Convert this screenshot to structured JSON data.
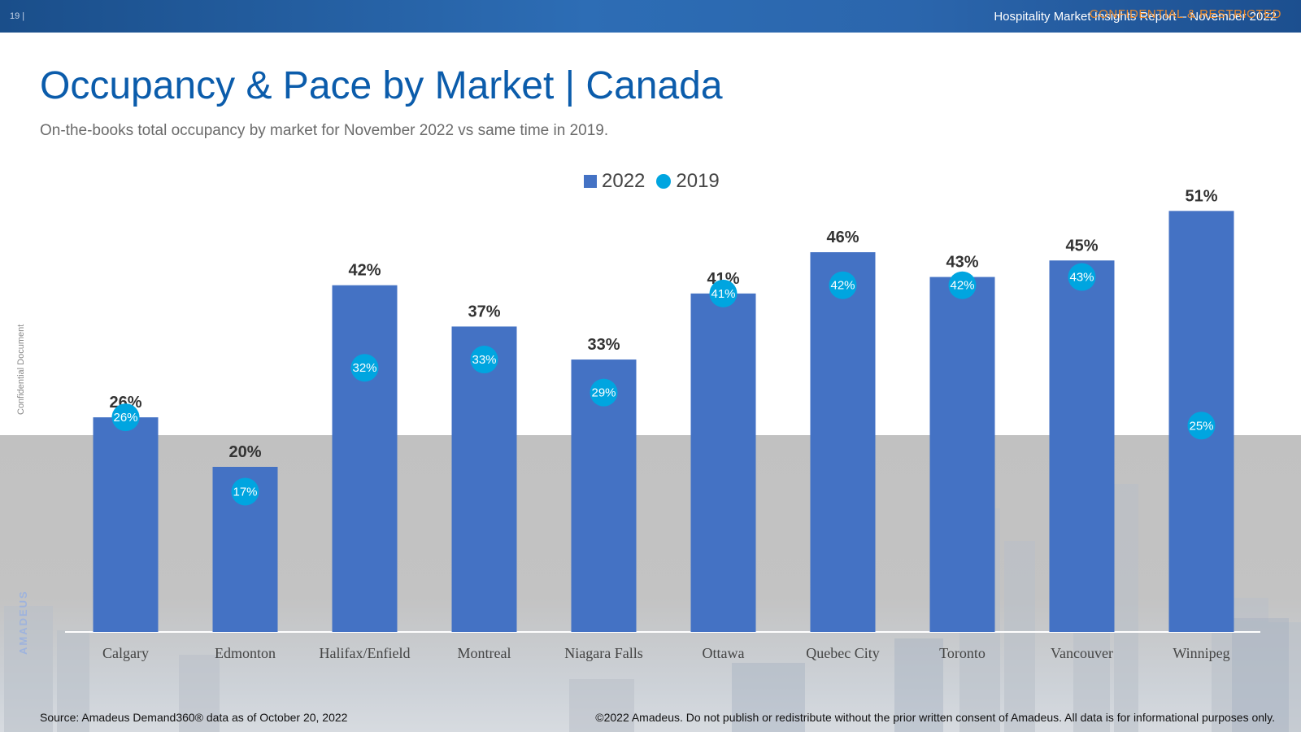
{
  "header": {
    "page_number": "19 |",
    "report_title": "Hospitality Market Insights Report – November 2022",
    "confidential_label": "CONFIDENTIAL & RESTRICTED"
  },
  "title": "Occupancy & Pace by Market | Canada",
  "subtitle": "On-the-books total occupancy by market for November 2022 vs same time in 2019.",
  "side_text": "Confidential Document",
  "side_logo": "AMADEUS",
  "footer": {
    "source": "Source: Amadeus Demand360® data as of October 20, 2022",
    "copyright": "©2022 Amadeus. Do not publish or redistribute without the prior written consent of Amadeus. All data is for informational purposes only."
  },
  "colors": {
    "bar_2022": "#4472c4",
    "marker_2019": "#00a5e0",
    "title": "#0b5cab"
  },
  "chart_data": {
    "type": "bar",
    "title": "Occupancy & Pace by Market | Canada",
    "xlabel": "",
    "ylabel": "",
    "ylim": [
      0,
      60
    ],
    "grid": false,
    "legend_position": "top-center",
    "categories": [
      "Calgary",
      "Edmonton",
      "Halifax/Enfield",
      "Montreal",
      "Niagara Falls",
      "Ottawa",
      "Quebec City",
      "Toronto",
      "Vancouver",
      "Winnipeg"
    ],
    "series": [
      {
        "name": "2022",
        "kind": "bar",
        "values": [
          26,
          20,
          42,
          37,
          33,
          41,
          46,
          43,
          45,
          51
        ],
        "labels": [
          "26%",
          "20%",
          "42%",
          "37%",
          "33%",
          "41%",
          "46%",
          "43%",
          "45%",
          "51%"
        ]
      },
      {
        "name": "2019",
        "kind": "marker",
        "values": [
          26,
          17,
          32,
          33,
          29,
          41,
          42,
          42,
          43,
          25
        ],
        "labels": [
          "26%",
          "17%",
          "32%",
          "33%",
          "29%",
          "41%",
          "42%",
          "42%",
          "43%",
          "25%"
        ]
      }
    ]
  }
}
